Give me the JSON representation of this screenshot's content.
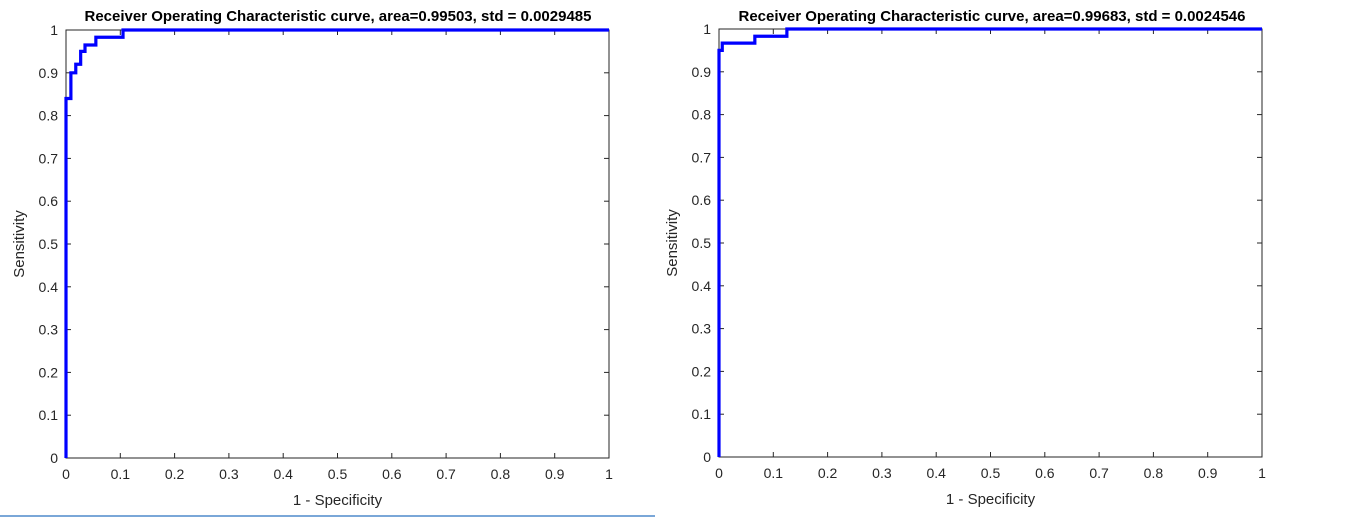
{
  "style": {
    "line_color": "#0000ff",
    "axis_color": "#262626",
    "bottom_rule_color": "#7aa7d8"
  },
  "chart_data": [
    {
      "type": "line",
      "title": "Receiver Operating Characteristic curve, area=0.99503, std = 0.0029485",
      "xlabel": "1 - Specificity",
      "ylabel": "Sensitivity",
      "xlim": [
        0,
        1
      ],
      "ylim": [
        0,
        1
      ],
      "xticks": [
        "0",
        "0.1",
        "0.2",
        "0.3",
        "0.4",
        "0.5",
        "0.6",
        "0.7",
        "0.8",
        "0.9",
        "1"
      ],
      "yticks": [
        "0",
        "0.1",
        "0.2",
        "0.3",
        "0.4",
        "0.5",
        "0.6",
        "0.7",
        "0.8",
        "0.9",
        "1"
      ],
      "grid": false,
      "series": [
        {
          "x": [
            0,
            0,
            0.009,
            0.009,
            0.018,
            0.018,
            0.027,
            0.027,
            0.035,
            0.035,
            0.055,
            0.055,
            0.105,
            0.105,
            1
          ],
          "y": [
            0,
            0.84,
            0.84,
            0.9,
            0.9,
            0.92,
            0.92,
            0.95,
            0.95,
            0.965,
            0.965,
            0.983,
            0.983,
            1,
            1
          ]
        }
      ]
    },
    {
      "type": "line",
      "title": "Receiver Operating Characteristic curve, area=0.99683, std = 0.0024546",
      "xlabel": "1 - Specificity",
      "ylabel": "Sensitivity",
      "xlim": [
        0,
        1
      ],
      "ylim": [
        0,
        1
      ],
      "xticks": [
        "0",
        "0.1",
        "0.2",
        "0.3",
        "0.4",
        "0.5",
        "0.6",
        "0.7",
        "0.8",
        "0.9",
        "1"
      ],
      "yticks": [
        "0",
        "0.1",
        "0.2",
        "0.3",
        "0.4",
        "0.5",
        "0.6",
        "0.7",
        "0.8",
        "0.9",
        "1"
      ],
      "grid": false,
      "series": [
        {
          "x": [
            0,
            0,
            0.006,
            0.006,
            0.066,
            0.066,
            0.125,
            0.125,
            1
          ],
          "y": [
            0,
            0.95,
            0.95,
            0.967,
            0.967,
            0.983,
            0.983,
            1,
            1
          ]
        }
      ]
    }
  ]
}
